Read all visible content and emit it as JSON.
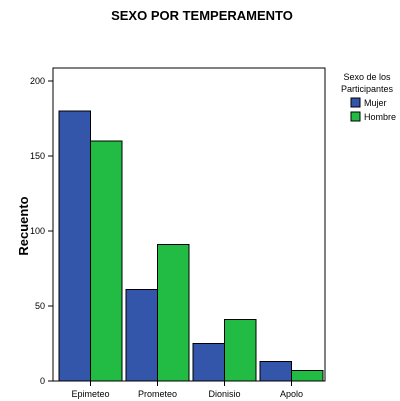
{
  "chart_data": {
    "type": "bar",
    "title": "SEXO POR TEMPERAMENTO",
    "xlabel": "",
    "ylabel": "Recuento",
    "categories": [
      "Epimeteo",
      "Prometeo",
      "Dionisio",
      "Apolo"
    ],
    "series": [
      {
        "name": "Mujer",
        "values": [
          180,
          61,
          25,
          13
        ],
        "color": "#3355aa"
      },
      {
        "name": "Hombre",
        "values": [
          160,
          91,
          41,
          7
        ],
        "color": "#22bb44"
      }
    ],
    "ylim": [
      0,
      200
    ],
    "yticks": [
      0,
      50,
      100,
      150,
      200
    ],
    "grid": false,
    "legend": {
      "title": "Sexo de los Participantes",
      "title_lines": [
        "Sexo de los",
        "Participantes"
      ],
      "placement": "right"
    }
  }
}
